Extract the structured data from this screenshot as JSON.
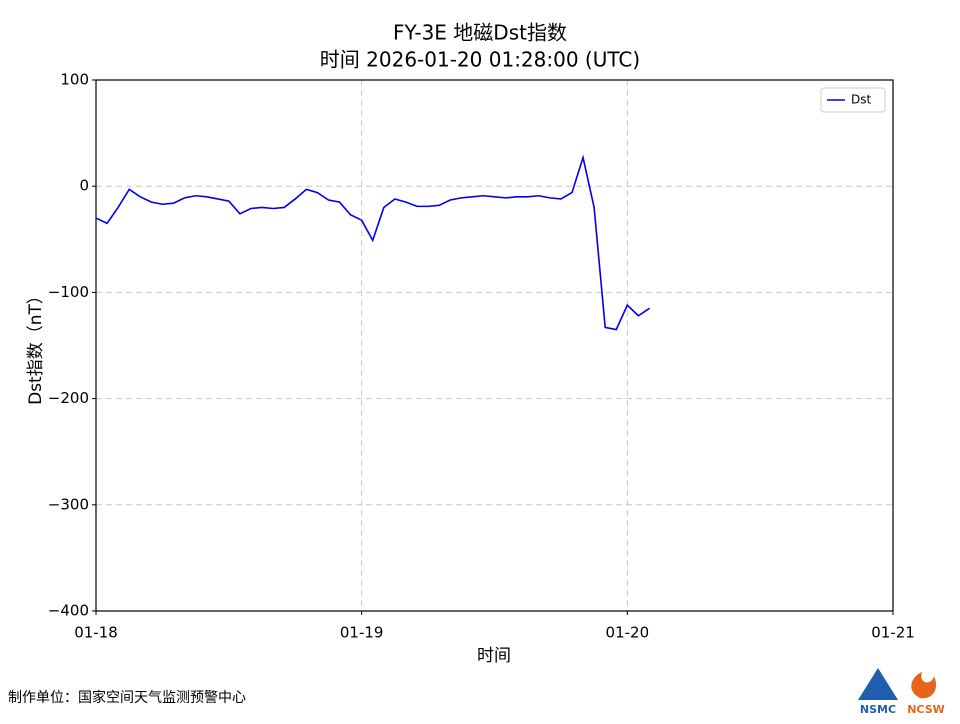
{
  "chart_data": {
    "type": "line",
    "title": "FY-3E 地磁Dst指数",
    "subtitle": "时间 2026-01-20 01:28:00 (UTC)",
    "x_label": "时间",
    "y_label": "Dst指数（nT）",
    "x": [
      0,
      1,
      2,
      3,
      4,
      5,
      6,
      7,
      8,
      9,
      10,
      11,
      12,
      13,
      14,
      15,
      16,
      17,
      18,
      19,
      20,
      21,
      22,
      23,
      24,
      25,
      26,
      27,
      28,
      29,
      30,
      31,
      32,
      33,
      34,
      35,
      36,
      37,
      38,
      39,
      40,
      41,
      42,
      43,
      44,
      45,
      46,
      47,
      48,
      49,
      50
    ],
    "series": [
      {
        "name": "Dst",
        "color": "#0000ee",
        "values": [
          -30,
          -35,
          -20,
          -3,
          -10,
          -15,
          -17,
          -16,
          -11,
          -9,
          -10,
          -12,
          -14,
          -26,
          -21,
          -20,
          -21,
          -20,
          -12,
          -3,
          -6,
          -13,
          -15,
          -27,
          -32,
          -51,
          -20,
          -12,
          -15,
          -19,
          -19,
          -18,
          -13,
          -11,
          -10,
          -9,
          -10,
          -11,
          -10,
          -10,
          -9,
          -11,
          -12,
          -6,
          27,
          -20,
          -133,
          -135,
          -112,
          -122,
          -115
        ]
      }
    ],
    "xlim": [
      0,
      72
    ],
    "xticks": [
      {
        "value": 0,
        "label": "01-18"
      },
      {
        "value": 24,
        "label": "01-19"
      },
      {
        "value": 48,
        "label": "01-20"
      },
      {
        "value": 72,
        "label": "01-21"
      }
    ],
    "ylim": [
      -400,
      100
    ],
    "yticks": [
      {
        "value": -400,
        "label": "−400"
      },
      {
        "value": -300,
        "label": "−300"
      },
      {
        "value": -200,
        "label": "−200"
      },
      {
        "value": -100,
        "label": "−100"
      },
      0,
      100
    ],
    "grid": true,
    "legend": "upper right"
  },
  "footer": {
    "producer": "制作单位：国家空间天气监测预警中心",
    "logo_left": "NSMC",
    "logo_right": "NCSW"
  }
}
